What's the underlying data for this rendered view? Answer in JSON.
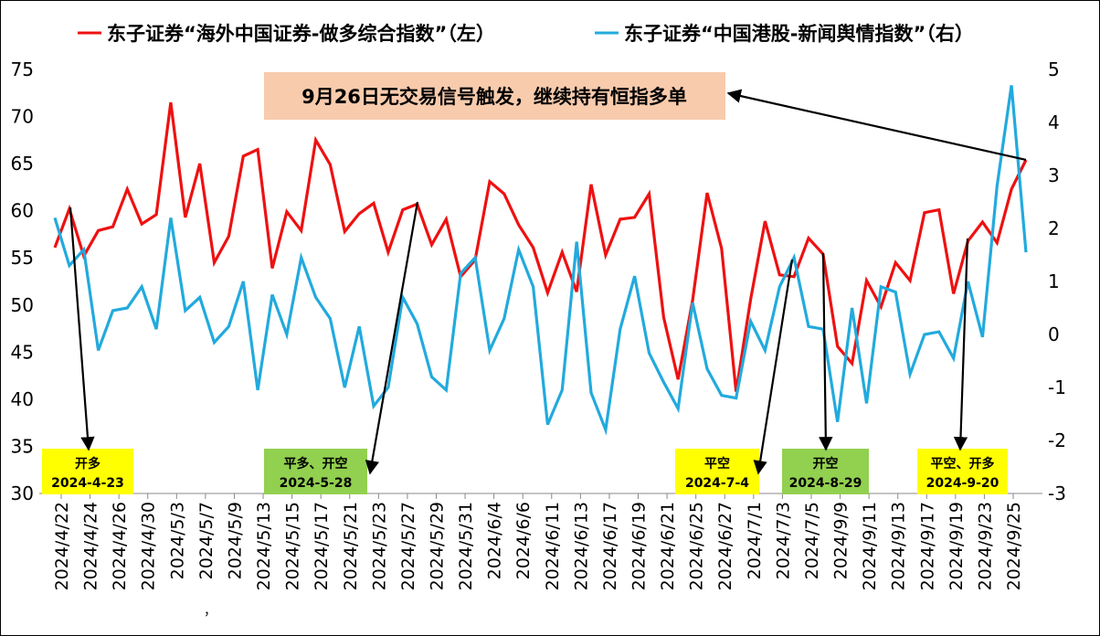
{
  "chart_data": {
    "type": "line",
    "title": "",
    "legend": {
      "placement": "top",
      "left_series": "东子证券“海外中国证券-做多综合指数”（左）",
      "right_series": "东子证券“中国港股-新闻舆情指数”（右）"
    },
    "grid": false,
    "x_tick_labels": [
      "2024/4/22",
      "2024/4/24",
      "2024/4/26",
      "2024/4/30",
      "2024/5/3",
      "2024/5/7",
      "2024/5/9",
      "2024/5/13",
      "2024/5/15",
      "2024/5/17",
      "2024/5/21",
      "2024/5/23",
      "2024/5/27",
      "2024/5/29",
      "2024/5/31",
      "2024/6/4",
      "2024/6/6",
      "2024/6/11",
      "2024/6/13",
      "2024/6/17",
      "2024/6/19",
      "2024/6/21",
      "2024/6/25",
      "2024/6/27",
      "2024/7/1",
      "2024/7/3",
      "2024/7/5",
      "2024/9/9",
      "2024/9/11",
      "2024/9/13",
      "2024/9/17",
      "2024/9/19",
      "2024/9/23",
      "2024/9/25"
    ],
    "y_left": {
      "min": 30,
      "max": 75,
      "ticks": [
        "30",
        "35",
        "40",
        "45",
        "50",
        "55",
        "60",
        "65",
        "70",
        "75"
      ]
    },
    "y_right": {
      "min": -3,
      "max": 5,
      "ticks": [
        "-3",
        "-2",
        "-1",
        "0",
        "1",
        "2",
        "3",
        "4",
        "5"
      ]
    },
    "series": [
      {
        "axis": "left",
        "color": "#ee1111",
        "values": [
          56.1,
          60.2,
          55.2,
          57.9,
          58.3,
          62.3,
          58.6,
          59.6,
          71.5,
          59.3,
          65.0,
          54.5,
          57.3,
          65.8,
          66.5,
          53.9,
          59.9,
          57.9,
          67.5,
          64.9,
          57.8,
          59.7,
          60.8,
          55.6,
          60.1,
          60.7,
          56.4,
          59.1,
          53.0,
          54.8,
          63.1,
          61.8,
          58.5,
          56.1,
          51.3,
          55.6,
          51.4,
          62.8,
          55.3,
          59.1,
          59.3,
          61.8,
          48.7,
          42.1,
          50.5,
          61.9,
          56.0,
          40.8,
          50.6,
          58.9,
          53.2,
          53.0,
          57.1,
          55.4,
          45.6,
          43.8,
          52.6,
          49.8,
          54.5,
          52.6,
          59.8,
          60.1,
          51.2,
          56.8,
          58.8,
          56.6,
          62.3,
          65.4
        ]
      },
      {
        "axis": "right",
        "color": "#22aadd",
        "values": [
          2.2,
          1.3,
          1.6,
          -0.3,
          0.45,
          0.5,
          0.9,
          0.1,
          2.2,
          0.45,
          0.7,
          -0.15,
          0.15,
          1.0,
          -1.05,
          0.75,
          0.0,
          1.45,
          0.7,
          0.3,
          -1.0,
          0.15,
          -1.35,
          -1.0,
          0.7,
          0.2,
          -0.8,
          -1.05,
          1.15,
          1.45,
          -0.3,
          0.3,
          1.6,
          0.9,
          -1.7,
          -1.05,
          1.75,
          -1.1,
          -1.8,
          0.1,
          1.1,
          -0.35,
          -0.9,
          -1.4,
          0.6,
          -0.65,
          -1.15,
          -1.2,
          0.25,
          -0.3,
          0.9,
          1.45,
          0.15,
          0.1,
          -1.65,
          0.5,
          -1.3,
          0.9,
          0.8,
          -0.75,
          0.0,
          0.05,
          -0.45,
          1.0,
          -0.05,
          2.8,
          4.7,
          1.55
        ]
      }
    ],
    "annotations": [
      {
        "text": "9月26日无交易信号触发，继续持有恒指多单",
        "style": "salmon-box"
      },
      {
        "lines": [
          "开多",
          "2024-4-23"
        ],
        "color": "#ffff00",
        "idx": 1
      },
      {
        "lines": [
          "平多、开空",
          "2024-5-28"
        ],
        "color": "#92d050",
        "idx": 26
      },
      {
        "lines": [
          "平空",
          "2024-7-4"
        ],
        "color": "#ffff00",
        "idx": 51
      },
      {
        "lines": [
          "开空",
          "2024-8-29"
        ],
        "color": "#92d050",
        "idx": 53
      },
      {
        "lines": [
          "平空、开多",
          "2024-9-20"
        ],
        "color": "#ffff00",
        "idx": 63
      }
    ],
    "stray_mark": "，"
  }
}
